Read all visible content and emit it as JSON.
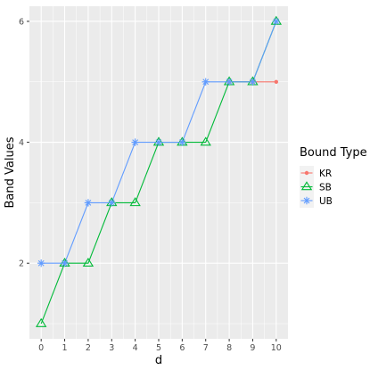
{
  "chart_data": {
    "type": "line",
    "xlabel": "d",
    "ylabel": "Band Values",
    "xlim": [
      -0.5,
      10.5
    ],
    "ylim": [
      0.75,
      6.25
    ],
    "x_ticks": [
      0,
      1,
      2,
      3,
      4,
      5,
      6,
      7,
      8,
      9,
      10
    ],
    "y_ticks": [
      2,
      4,
      6
    ],
    "grid": true,
    "legend": {
      "title": "Bound Type",
      "placement": "right"
    },
    "series": [
      {
        "name": "KR",
        "color": "#F8766D",
        "marker": "circle",
        "x": [
          8,
          9,
          10
        ],
        "y": [
          5,
          5,
          5
        ]
      },
      {
        "name": "SB",
        "color": "#00BA38",
        "marker": "triangle",
        "x": [
          0,
          1,
          2,
          3,
          4,
          5,
          6,
          7,
          8,
          9,
          10
        ],
        "y": [
          1,
          2,
          2,
          3,
          3,
          4,
          4,
          4,
          5,
          5,
          6
        ]
      },
      {
        "name": "UB",
        "color": "#619CFF",
        "marker": "asterisk",
        "x": [
          0,
          1,
          2,
          3,
          4,
          5,
          6,
          7,
          8,
          9,
          10
        ],
        "y": [
          2,
          2,
          3,
          3,
          4,
          4,
          4,
          5,
          5,
          5,
          6
        ]
      }
    ]
  }
}
